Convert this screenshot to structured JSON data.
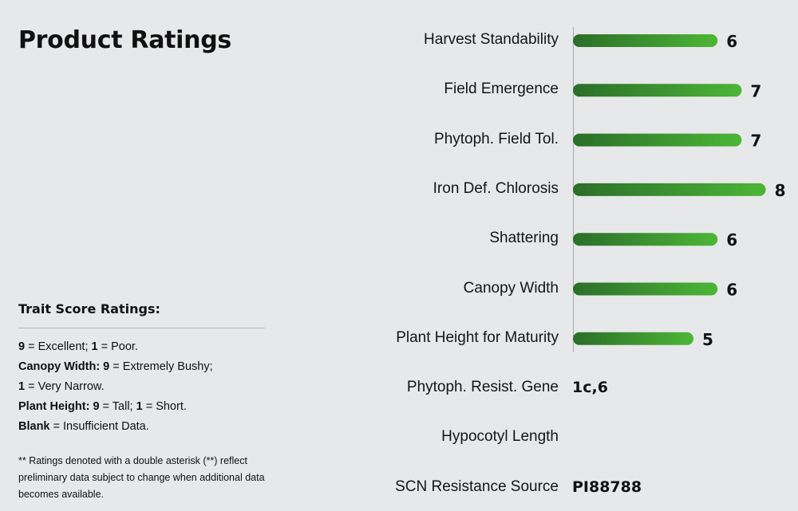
{
  "title": "Product Ratings",
  "legend": {
    "heading": "Trait Score Ratings:",
    "lines": [
      [
        {
          "b": "9"
        },
        {
          "t": " = Excellent; "
        },
        {
          "b": "1"
        },
        {
          "t": " = Poor."
        }
      ],
      [
        {
          "b": "Canopy Width: 9"
        },
        {
          "t": " = Extremely Bushy;"
        }
      ],
      [
        {
          "b": "1"
        },
        {
          "t": " = Very Narrow."
        }
      ],
      [
        {
          "b": "Plant Height: 9"
        },
        {
          "t": " = Tall; "
        },
        {
          "b": "1"
        },
        {
          "t": " = Short."
        }
      ],
      [
        {
          "b": "Blank"
        },
        {
          "t": " = Insufficient Data."
        }
      ]
    ],
    "note": "** Ratings denoted with a double asterisk (**) reflect preliminary data subject to change when additional data becomes available."
  },
  "chart_data": {
    "type": "bar",
    "orientation": "horizontal",
    "categories": [
      "Harvest Standability",
      "Field Emergence",
      "Phytoph. Field Tol.",
      "Iron Def. Chlorosis",
      "Shattering",
      "Canopy Width",
      "Plant Height for Maturity"
    ],
    "values": [
      6,
      7,
      7,
      8,
      6,
      6,
      5
    ],
    "scale": [
      0,
      9
    ],
    "bar_color_start": "#2b6e2a",
    "bar_color_end": "#4cb636"
  },
  "text_rows": [
    {
      "label": "Phytoph. Resist. Gene",
      "value": "1c,6"
    },
    {
      "label": "Hypocotyl Length",
      "value": ""
    },
    {
      "label": "SCN Resistance Source",
      "value": "PI88788"
    }
  ]
}
